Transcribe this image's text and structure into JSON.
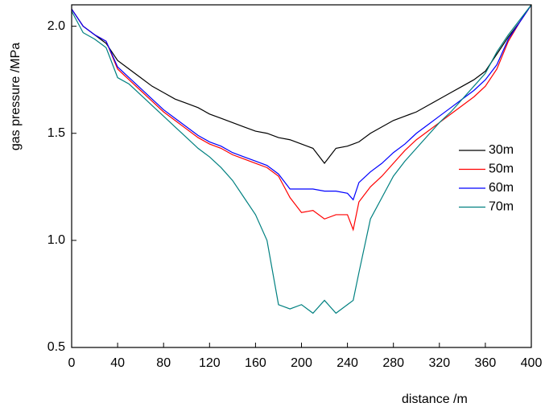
{
  "chart_data": {
    "type": "line",
    "xlabel": "distance /m",
    "ylabel": "gas pressure /MPa",
    "x": [
      0,
      10,
      20,
      30,
      40,
      50,
      60,
      70,
      80,
      90,
      100,
      110,
      120,
      130,
      140,
      150,
      160,
      170,
      180,
      190,
      200,
      210,
      220,
      230,
      240,
      245,
      250,
      260,
      270,
      280,
      290,
      300,
      310,
      320,
      330,
      340,
      350,
      360,
      370,
      380,
      390,
      400
    ],
    "series": [
      {
        "name": "30m",
        "color": "#000000",
        "values": [
          2.08,
          2.0,
          1.96,
          1.92,
          1.84,
          1.8,
          1.76,
          1.72,
          1.69,
          1.66,
          1.64,
          1.62,
          1.59,
          1.57,
          1.55,
          1.53,
          1.51,
          1.5,
          1.48,
          1.47,
          1.45,
          1.43,
          1.36,
          1.43,
          1.44,
          1.45,
          1.46,
          1.5,
          1.53,
          1.56,
          1.58,
          1.6,
          1.63,
          1.66,
          1.69,
          1.72,
          1.75,
          1.79,
          1.87,
          1.95,
          2.02,
          2.1
        ]
      },
      {
        "name": "50m",
        "color": "#ff0000",
        "values": [
          2.08,
          2.0,
          1.96,
          1.93,
          1.8,
          1.75,
          1.7,
          1.65,
          1.6,
          1.56,
          1.52,
          1.48,
          1.45,
          1.43,
          1.4,
          1.38,
          1.36,
          1.34,
          1.3,
          1.2,
          1.13,
          1.14,
          1.1,
          1.12,
          1.12,
          1.05,
          1.18,
          1.25,
          1.3,
          1.36,
          1.42,
          1.47,
          1.51,
          1.55,
          1.59,
          1.63,
          1.67,
          1.72,
          1.8,
          1.93,
          2.02,
          2.1
        ]
      },
      {
        "name": "60m",
        "color": "#0000ff",
        "values": [
          2.08,
          2.0,
          1.96,
          1.93,
          1.81,
          1.76,
          1.71,
          1.66,
          1.61,
          1.57,
          1.53,
          1.49,
          1.46,
          1.44,
          1.41,
          1.39,
          1.37,
          1.35,
          1.31,
          1.24,
          1.24,
          1.24,
          1.23,
          1.23,
          1.22,
          1.19,
          1.27,
          1.32,
          1.36,
          1.41,
          1.45,
          1.5,
          1.54,
          1.58,
          1.62,
          1.66,
          1.7,
          1.75,
          1.82,
          1.94,
          2.02,
          2.1
        ]
      },
      {
        "name": "70m",
        "color": "#008080",
        "values": [
          2.07,
          1.97,
          1.94,
          1.9,
          1.76,
          1.73,
          1.68,
          1.63,
          1.58,
          1.53,
          1.48,
          1.43,
          1.39,
          1.34,
          1.28,
          1.2,
          1.12,
          1.0,
          0.7,
          0.68,
          0.7,
          0.66,
          0.72,
          0.66,
          0.7,
          0.72,
          0.85,
          1.1,
          1.2,
          1.3,
          1.37,
          1.43,
          1.49,
          1.55,
          1.6,
          1.66,
          1.72,
          1.78,
          1.88,
          1.96,
          2.03,
          2.1
        ]
      }
    ],
    "xlim": [
      0,
      400
    ],
    "xticks": [
      0,
      40,
      80,
      120,
      160,
      200,
      240,
      280,
      320,
      360,
      400
    ],
    "ylim": [
      0.5,
      2.1
    ],
    "yticks": [
      0.5,
      {
        "value": 1,
        "label": "1.0"
      },
      1.5,
      {
        "value": 2,
        "label": "2.0"
      }
    ],
    "legend": "right"
  }
}
